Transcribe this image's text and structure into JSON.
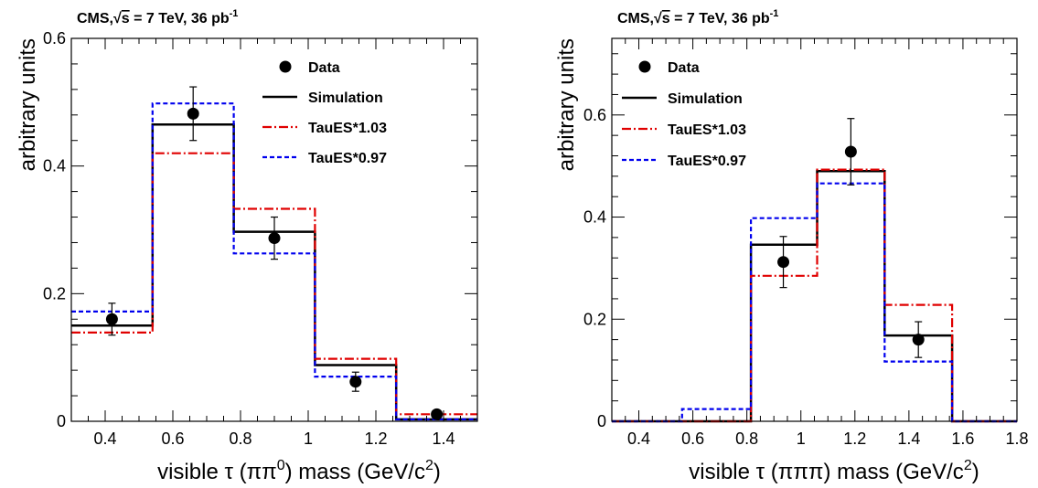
{
  "chart_data": [
    {
      "type": "histogram",
      "title": "CMS,",
      "title_sqrt": "s",
      "title_rest": " = 7 TeV, 36 pb",
      "title_sup": "-1",
      "xlabel_pre": "visible τ (ππ",
      "xlabel_sup": "0",
      "xlabel_post": ") mass (GeV/c",
      "xlabel_sup2": "2",
      "xlabel_end": ")",
      "ylabel": "arbitrary units",
      "xlim": [
        0.3,
        1.5
      ],
      "ylim": [
        0,
        0.6
      ],
      "xticks": [
        {
          "v": 0.4,
          "label": "0.4"
        },
        {
          "v": 0.6,
          "label": "0.6"
        },
        {
          "v": 0.8,
          "label": "0.8"
        },
        {
          "v": 1.0,
          "label": "1"
        },
        {
          "v": 1.2,
          "label": "1.2"
        },
        {
          "v": 1.4,
          "label": "1.4"
        }
      ],
      "yticks": [
        {
          "v": 0,
          "label": "0"
        },
        {
          "v": 0.2,
          "label": "0.2"
        },
        {
          "v": 0.4,
          "label": "0.4"
        },
        {
          "v": 0.6,
          "label": "0.6"
        }
      ],
      "edges": [
        0.3,
        0.54,
        0.78,
        1.02,
        1.26,
        1.5
      ],
      "series": [
        {
          "name": "Simulation",
          "color": "#000000",
          "dash": "",
          "values": [
            0.15,
            0.465,
            0.297,
            0.088,
            0.003
          ]
        },
        {
          "name": "TauES*1.03",
          "color": "#e00000",
          "dash": "10,3,2,3",
          "values": [
            0.139,
            0.42,
            0.333,
            0.098,
            0.011
          ]
        },
        {
          "name": "TauES*0.97",
          "color": "#0000ee",
          "dash": "5,3",
          "values": [
            0.172,
            0.498,
            0.263,
            0.07,
            0.003
          ]
        }
      ],
      "data": {
        "name": "Data",
        "points": [
          {
            "x": 0.42,
            "y": 0.16,
            "err": 0.025
          },
          {
            "x": 0.66,
            "y": 0.482,
            "err": 0.042
          },
          {
            "x": 0.9,
            "y": 0.287,
            "err": 0.033
          },
          {
            "x": 1.14,
            "y": 0.062,
            "err": 0.015
          },
          {
            "x": 1.38,
            "y": 0.011,
            "err": 0.004
          }
        ]
      },
      "legend": "top-right"
    },
    {
      "type": "histogram",
      "title": "CMS,",
      "title_sqrt": "s",
      "title_rest": " = 7 TeV, 36 pb",
      "title_sup": "-1",
      "xlabel_pre": "visible τ (πππ) mass (GeV/c",
      "xlabel_sup": "",
      "xlabel_post": "",
      "xlabel_sup2": "2",
      "xlabel_end": ")",
      "ylabel": "arbitrary units",
      "xlim": [
        0.3,
        1.8
      ],
      "ylim": [
        0,
        0.75
      ],
      "xticks": [
        {
          "v": 0.4,
          "label": "0.4"
        },
        {
          "v": 0.6,
          "label": "0.6"
        },
        {
          "v": 0.8,
          "label": "0.8"
        },
        {
          "v": 1.0,
          "label": "1"
        },
        {
          "v": 1.2,
          "label": "1.2"
        },
        {
          "v": 1.4,
          "label": "1.4"
        },
        {
          "v": 1.6,
          "label": "1.6"
        },
        {
          "v": 1.8,
          "label": "1.8"
        }
      ],
      "yticks": [
        {
          "v": 0,
          "label": "0"
        },
        {
          "v": 0.2,
          "label": "0.2"
        },
        {
          "v": 0.4,
          "label": "0.4"
        },
        {
          "v": 0.6,
          "label": "0.6"
        }
      ],
      "edges": [
        0.3,
        0.56,
        0.815,
        1.06,
        1.31,
        1.56,
        1.8
      ],
      "series": [
        {
          "name": "Simulation",
          "color": "#000000",
          "dash": "",
          "values": [
            0.0,
            0.0,
            0.346,
            0.49,
            0.168,
            0.0
          ]
        },
        {
          "name": "TauES*1.03",
          "color": "#e00000",
          "dash": "10,3,2,3",
          "values": [
            0.0,
            0.0,
            0.285,
            0.493,
            0.228,
            0.0
          ]
        },
        {
          "name": "TauES*0.97",
          "color": "#0000ee",
          "dash": "5,3",
          "values": [
            0.0,
            0.024,
            0.398,
            0.466,
            0.117,
            0.0
          ]
        }
      ],
      "data": {
        "name": "Data",
        "points": [
          {
            "x": 0.935,
            "y": 0.312,
            "err": 0.05
          },
          {
            "x": 1.185,
            "y": 0.528,
            "err": 0.065
          },
          {
            "x": 1.435,
            "y": 0.16,
            "err": 0.035
          }
        ]
      },
      "legend": "top-left"
    }
  ]
}
